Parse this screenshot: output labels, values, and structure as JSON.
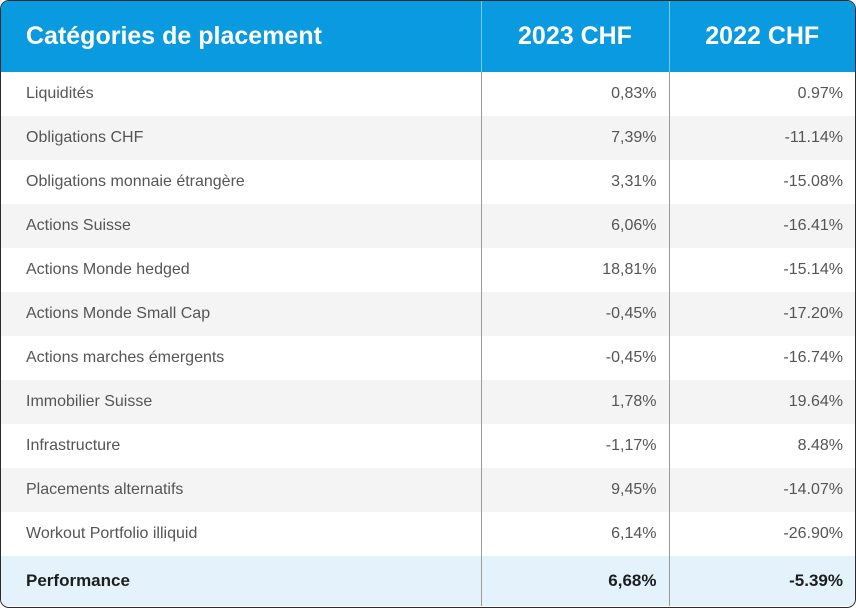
{
  "table": {
    "header": {
      "category": "Catégories de placement",
      "col_2023": "2023 CHF",
      "col_2022": "2022 CHF"
    },
    "rows": [
      {
        "label": "Liquidités",
        "v2023": "0,83%",
        "v2022": "0.97%"
      },
      {
        "label": "Obligations CHF",
        "v2023": "7,39%",
        "v2022": "-11.14%"
      },
      {
        "label": "Obligations monnaie étrangère",
        "v2023": "3,31%",
        "v2022": "-15.08%"
      },
      {
        "label": "Actions Suisse",
        "v2023": "6,06%",
        "v2022": "-16.41%"
      },
      {
        "label": "Actions Monde hedged",
        "v2023": "18,81%",
        "v2022": "-15.14%"
      },
      {
        "label": "Actions Monde Small Cap",
        "v2023": "-0,45%",
        "v2022": "-17.20%"
      },
      {
        "label": "Actions marches émergents",
        "v2023": "-0,45%",
        "v2022": "-16.74%"
      },
      {
        "label": "Immobilier Suisse",
        "v2023": "1,78%",
        "v2022": "19.64%"
      },
      {
        "label": "Infrastructure",
        "v2023": "-1,17%",
        "v2022": "8.48%"
      },
      {
        "label": "Placements alternatifs",
        "v2023": "9,45%",
        "v2022": "-14.07%"
      },
      {
        "label": "Workout Portfolio illiquid",
        "v2023": "6,14%",
        "v2022": "-26.90%"
      }
    ],
    "footer": {
      "label": "Performance",
      "v2023": "6,68%",
      "v2022": "-5.39%"
    }
  },
  "colors": {
    "header_bg": "#0a9ae0",
    "header_text": "#ffffff",
    "row_alt": "#f4f4f4",
    "footer_bg": "#e4f3fb"
  }
}
